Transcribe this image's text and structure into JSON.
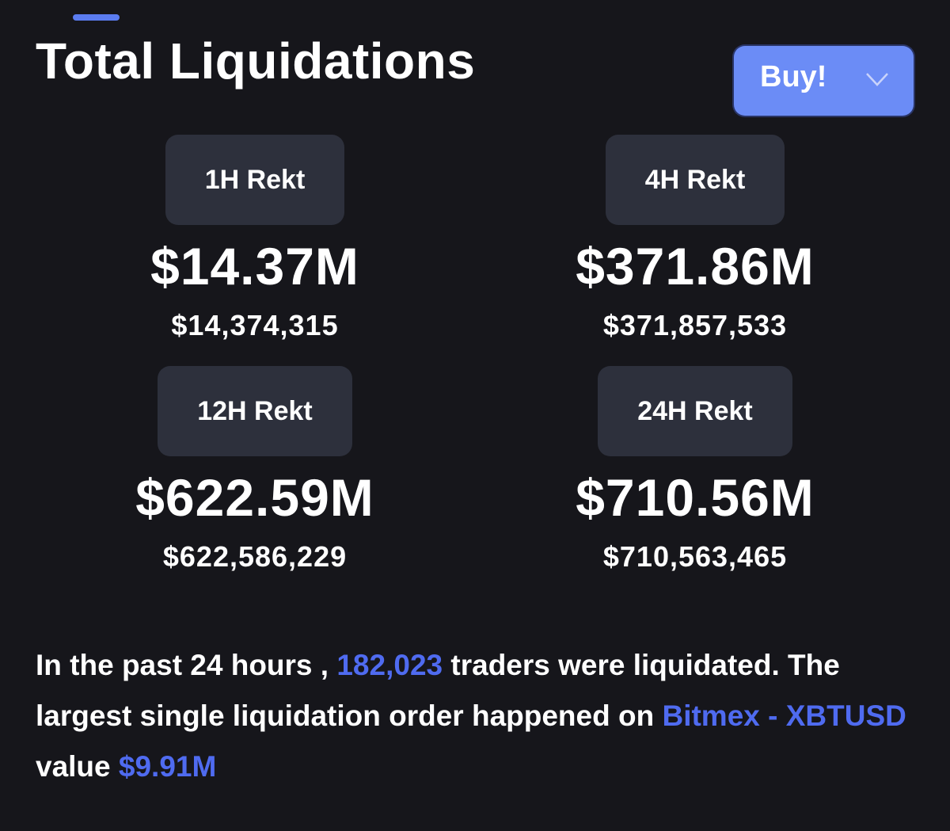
{
  "header": {
    "title": "Total Liquidations",
    "button": "Buy!"
  },
  "cards": [
    {
      "label": "1H Rekt",
      "value": "$14.37M",
      "exact": "$14,374,315"
    },
    {
      "label": "4H Rekt",
      "value": "$371.86M",
      "exact": "$371,857,533"
    },
    {
      "label": "12H Rekt",
      "value": "$622.59M",
      "exact": "$622,586,229"
    },
    {
      "label": "24H Rekt",
      "value": "$710.56M",
      "exact": "$710,563,465"
    }
  ],
  "summary": {
    "prefix": "In the past 24 hours ,",
    "traders": "182,023",
    "middle": "traders were liquidated. The largest single liquidation order happened on",
    "exchange": "Bitmex - XBTUSD",
    "suffix": "value",
    "largest": "$9.91M"
  }
}
